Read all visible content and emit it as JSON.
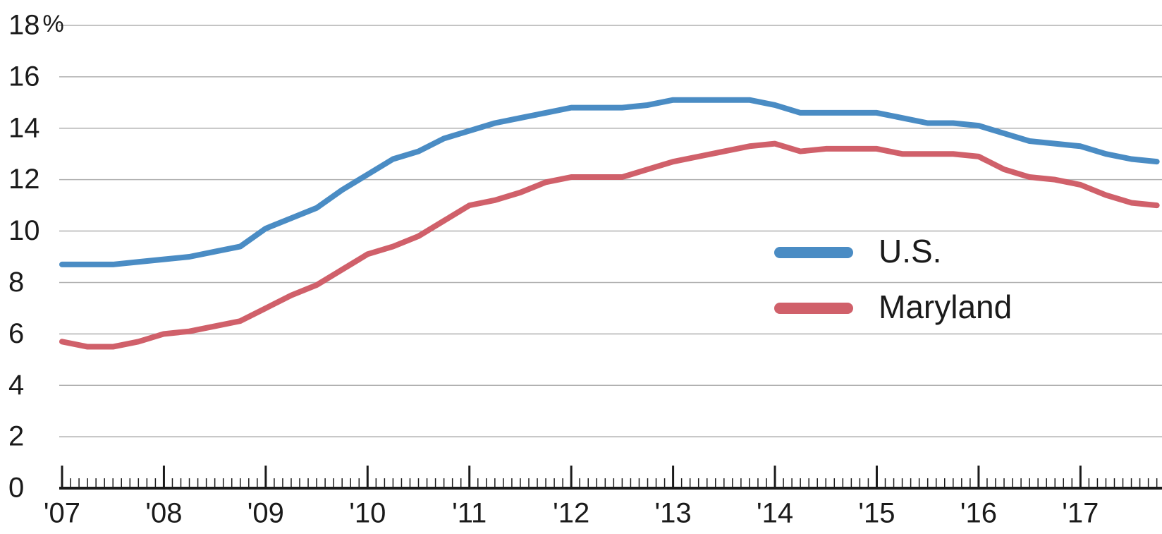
{
  "chart_data": {
    "type": "line",
    "y_unit": "%",
    "x": [
      2007,
      2007.25,
      2007.5,
      2007.75,
      2008,
      2008.25,
      2008.5,
      2008.75,
      2009,
      2009.25,
      2009.5,
      2009.75,
      2010,
      2010.25,
      2010.5,
      2010.75,
      2011,
      2011.25,
      2011.5,
      2011.75,
      2012,
      2012.25,
      2012.5,
      2012.75,
      2013,
      2013.25,
      2013.5,
      2013.75,
      2014,
      2014.25,
      2014.5,
      2014.75,
      2015,
      2015.25,
      2015.5,
      2015.75,
      2016,
      2016.25,
      2016.5,
      2016.75,
      2017,
      2017.25,
      2017.5,
      2017.75
    ],
    "series": [
      {
        "name": "U.S.",
        "color": "#4a8cc4",
        "values": [
          8.7,
          8.7,
          8.7,
          8.8,
          8.9,
          9.0,
          9.2,
          9.4,
          10.1,
          10.5,
          10.9,
          11.6,
          12.2,
          12.8,
          13.1,
          13.6,
          13.9,
          14.2,
          14.4,
          14.6,
          14.8,
          14.8,
          14.8,
          14.9,
          15.1,
          15.1,
          15.1,
          15.1,
          14.9,
          14.6,
          14.6,
          14.6,
          14.6,
          14.4,
          14.2,
          14.2,
          14.1,
          13.8,
          13.5,
          13.4,
          13.3,
          13.0,
          12.8,
          12.7
        ]
      },
      {
        "name": "Maryland",
        "color": "#d0606a",
        "values": [
          5.7,
          5.5,
          5.5,
          5.7,
          6.0,
          6.1,
          6.3,
          6.5,
          7.0,
          7.5,
          7.9,
          8.5,
          9.1,
          9.4,
          9.8,
          10.4,
          11.0,
          11.2,
          11.5,
          11.9,
          12.1,
          12.1,
          12.1,
          12.4,
          12.7,
          12.9,
          13.1,
          13.3,
          13.4,
          13.1,
          13.2,
          13.2,
          13.2,
          13.0,
          13.0,
          13.0,
          12.9,
          12.4,
          12.1,
          12.0,
          11.8,
          11.4,
          11.1,
          11.0
        ]
      }
    ],
    "xlim": [
      2007,
      2017.78
    ],
    "xticks": [
      {
        "value": 2007,
        "label": "'07"
      },
      {
        "value": 2008,
        "label": "'08"
      },
      {
        "value": 2009,
        "label": "'09"
      },
      {
        "value": 2010,
        "label": "'10"
      },
      {
        "value": 2011,
        "label": "'11"
      },
      {
        "value": 2012,
        "label": "'12"
      },
      {
        "value": 2013,
        "label": "'13"
      },
      {
        "value": 2014,
        "label": "'14"
      },
      {
        "value": 2015,
        "label": "'15"
      },
      {
        "value": 2016,
        "label": "'16"
      },
      {
        "value": 2017,
        "label": "'17"
      }
    ],
    "ylim": [
      0,
      18
    ],
    "yticks": [
      0,
      2,
      4,
      6,
      8,
      10,
      12,
      14,
      16,
      18
    ],
    "grid": true
  }
}
